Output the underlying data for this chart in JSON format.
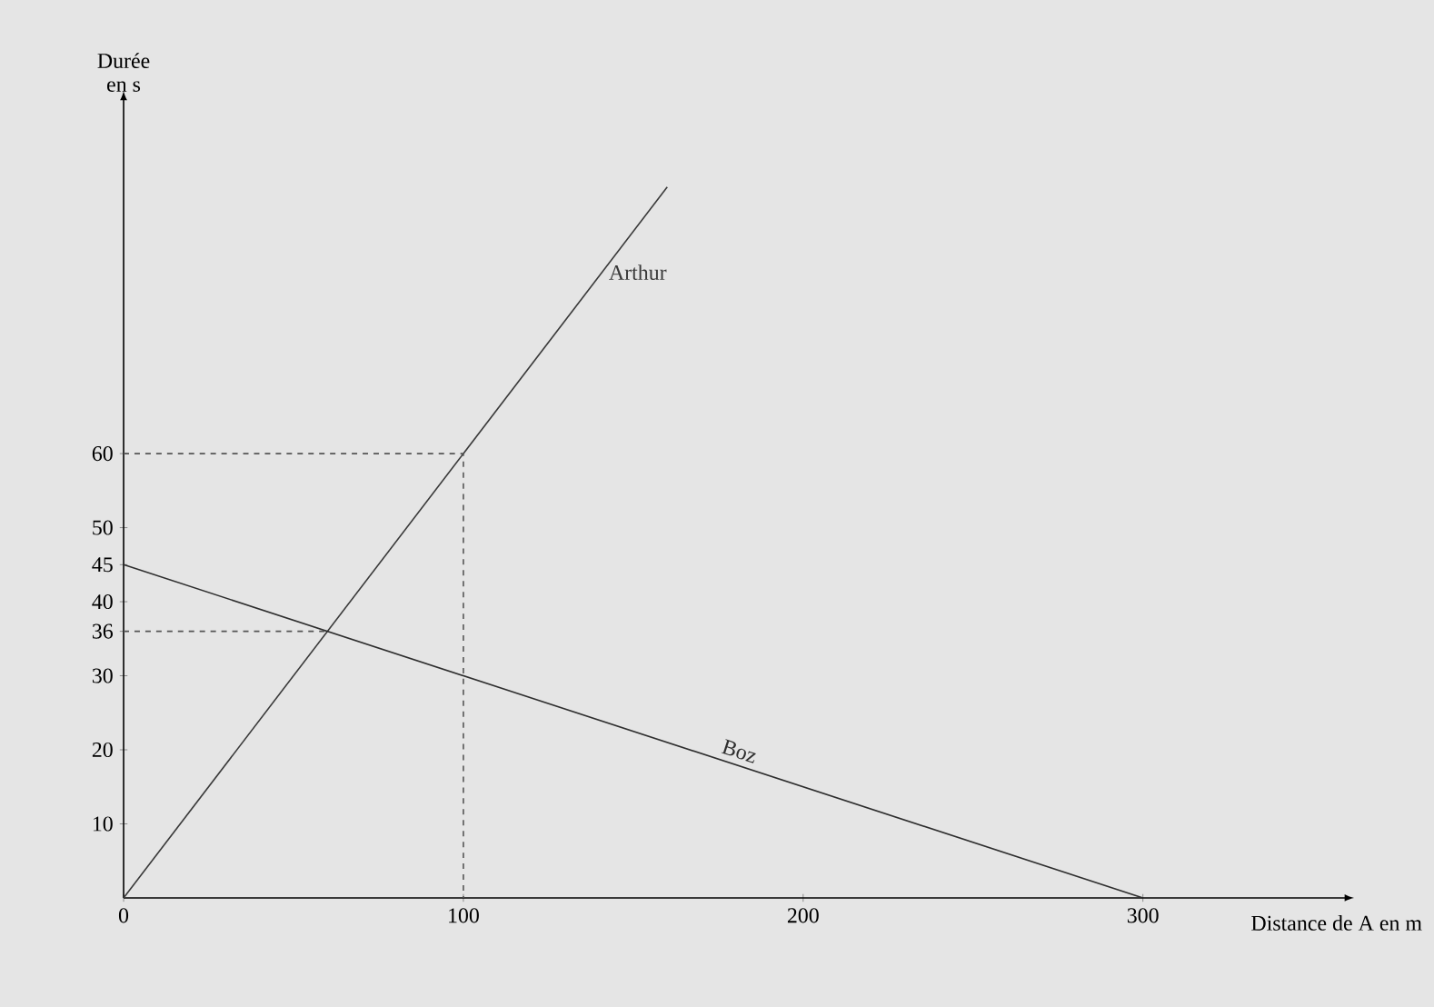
{
  "chart_data": {
    "type": "line",
    "xlabel": "Distance de A en m",
    "ylabel": "Durée en s",
    "xlim": [
      0,
      360
    ],
    "ylim": [
      0,
      108
    ],
    "xticks": [
      0,
      100,
      200,
      300
    ],
    "yticks": [
      10,
      20,
      30,
      36,
      40,
      45,
      50,
      60
    ],
    "series": [
      {
        "name": "Arthur",
        "color": "#3a3a3a",
        "x": [
          0,
          160
        ],
        "values": [
          0,
          96
        ]
      },
      {
        "name": "Boz",
        "color": "#2e2e2e",
        "x": [
          0,
          300
        ],
        "values": [
          45,
          0
        ]
      },
      {
        "color": "#555555",
        "line_style": "dashed",
        "x": [
          0,
          100,
          100
        ],
        "values": [
          60,
          60,
          0
        ]
      },
      {
        "color": "#555555",
        "line_style": "dashed",
        "x": [
          0,
          60
        ],
        "values": [
          36,
          36
        ]
      }
    ]
  }
}
